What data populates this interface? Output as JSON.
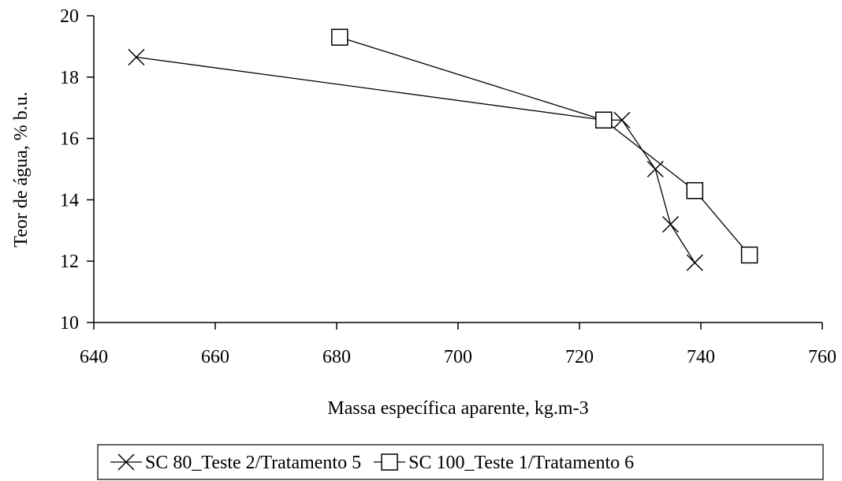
{
  "chart_data": {
    "type": "line",
    "xlabel": "Massa específica aparente, kg.m-3",
    "ylabel": "Teor de água, % b.u.",
    "xlim": [
      640,
      760
    ],
    "ylim": [
      10,
      20
    ],
    "xticks": [
      640,
      660,
      680,
      700,
      720,
      740,
      760
    ],
    "yticks": [
      10,
      12,
      14,
      16,
      18,
      20
    ],
    "grid": false,
    "legend_position": "bottom",
    "series": [
      {
        "name": "SC 80_Teste 2/Tratamento 5",
        "marker": "x",
        "color": "#000000",
        "points": [
          [
            647,
            18.65
          ],
          [
            724,
            16.6
          ],
          [
            727,
            16.6
          ],
          [
            732.5,
            15.0
          ],
          [
            735,
            13.2
          ],
          [
            739,
            11.95
          ]
        ]
      },
      {
        "name": "SC 100_Teste 1/Tratamento 6",
        "marker": "square",
        "color": "#000000",
        "points": [
          [
            680.5,
            19.3
          ],
          [
            724,
            16.6
          ],
          [
            739,
            14.3
          ],
          [
            748,
            12.2
          ]
        ]
      }
    ]
  }
}
